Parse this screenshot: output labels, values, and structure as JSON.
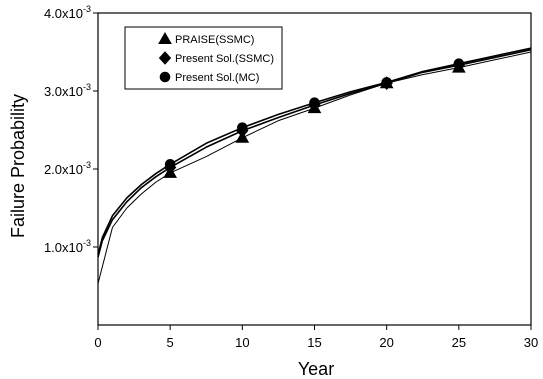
{
  "chart_data": {
    "type": "line",
    "xlabel": "Year",
    "ylabel": "Failure Probability",
    "xlim": [
      0,
      30
    ],
    "ylim": [
      0,
      0.004
    ],
    "x_ticks": [
      0,
      5,
      10,
      15,
      20,
      25,
      30
    ],
    "y_ticks": [
      {
        "value": 0.001,
        "mantissa": "1.0x10",
        "exponent": "-3"
      },
      {
        "value": 0.002,
        "mantissa": "2.0x10",
        "exponent": "-3"
      },
      {
        "value": 0.003,
        "mantissa": "3.0x10",
        "exponent": "-3"
      },
      {
        "value": 0.004,
        "mantissa": "4.0x10",
        "exponent": "-3"
      }
    ],
    "grid": false,
    "legend_position": "top-left",
    "series": [
      {
        "name": "PRAISE(SSMC)",
        "marker": "triangle",
        "x": [
          0,
          1,
          2,
          3,
          4,
          5,
          7.5,
          10,
          12.5,
          15,
          17.5,
          20,
          22.5,
          25,
          27.5,
          30
        ],
        "y": [
          0.00053,
          0.00125,
          0.0015,
          0.00168,
          0.00183,
          0.00195,
          0.00216,
          0.0024,
          0.00262,
          0.00278,
          0.00295,
          0.0031,
          0.00321,
          0.0033,
          0.0034,
          0.0035
        ],
        "marker_x": [
          5,
          10,
          15,
          20,
          25
        ]
      },
      {
        "name": "Present Sol.(SSMC)",
        "marker": "diamond",
        "x": [
          0,
          0.3,
          1,
          2,
          3,
          4,
          5,
          7.5,
          10,
          12.5,
          15,
          17.5,
          20,
          22.5,
          25,
          27.5,
          30
        ],
        "y": [
          0.00087,
          0.00108,
          0.00135,
          0.00158,
          0.00176,
          0.0019,
          0.00202,
          0.00228,
          0.00249,
          0.00266,
          0.00282,
          0.00297,
          0.0031,
          0.00324,
          0.00333,
          0.00343,
          0.00353
        ],
        "marker_x": [
          5,
          10,
          15,
          20,
          25
        ]
      },
      {
        "name": "Present Sol.(MC)",
        "marker": "circle",
        "x": [
          0,
          0.3,
          1,
          2,
          3,
          4,
          5,
          7.5,
          10,
          12.5,
          15,
          17.5,
          20,
          22.5,
          25,
          27.5,
          30
        ],
        "y": [
          0.0009,
          0.00112,
          0.0014,
          0.00163,
          0.0018,
          0.00194,
          0.00206,
          0.00233,
          0.00253,
          0.0027,
          0.00285,
          0.00299,
          0.00311,
          0.00325,
          0.00335,
          0.00345,
          0.00355
        ],
        "marker_x": [
          5,
          10,
          15,
          20,
          25
        ]
      }
    ]
  }
}
